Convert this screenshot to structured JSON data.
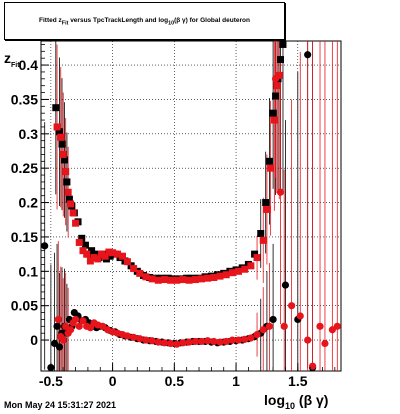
{
  "title": {
    "prefix": "Fitted  z",
    "sub1": "Fit",
    "middle": "  versus TpcTrackLength and log",
    "sub2": "10",
    "suffix": "(β γ) for Global deuteron"
  },
  "footer": "Mon May 24 15:31:27 2021",
  "y_axis_label": {
    "main": "z",
    "sub": "Fit"
  },
  "x_axis_label": {
    "main": "log",
    "sub": "10",
    "rest": "(β γ)"
  },
  "chart_data": {
    "type": "scatter",
    "xlim": [
      -0.58,
      1.85
    ],
    "ylim": [
      -0.045,
      0.435
    ],
    "grid": true,
    "x_ticks": [
      "-0.5",
      "0",
      "0.5",
      "1",
      "1.5"
    ],
    "x_tick_values": [
      -0.5,
      0,
      0.5,
      1,
      1.5
    ],
    "y_ticks": [
      "0",
      "0.05",
      "0.1",
      "0.15",
      "0.2",
      "0.25",
      "0.3",
      "0.35",
      "0.4"
    ],
    "y_tick_values": [
      0,
      0.05,
      0.1,
      0.15,
      0.2,
      0.25,
      0.3,
      0.35,
      0.4
    ],
    "series": [
      {
        "color": "#000000",
        "marker": "square",
        "points": [
          [
            -0.46,
            0.338
          ],
          [
            -0.43,
            0.303
          ],
          [
            -0.41,
            0.285
          ],
          [
            -0.39,
            0.262
          ],
          [
            -0.37,
            0.23
          ],
          [
            -0.35,
            0.205
          ],
          [
            -0.33,
            0.195
          ],
          [
            -0.31,
            0.185
          ],
          [
            -0.28,
            0.172
          ],
          [
            -0.25,
            0.148
          ],
          [
            -0.22,
            0.138
          ],
          [
            -0.2,
            0.125
          ],
          [
            -0.17,
            0.13
          ],
          [
            -0.14,
            0.125
          ],
          [
            -0.11,
            0.12
          ],
          [
            -0.08,
            0.125
          ],
          [
            -0.05,
            0.118
          ],
          [
            -0.02,
            0.122
          ],
          [
            0.02,
            0.125
          ],
          [
            0.06,
            0.12
          ],
          [
            0.1,
            0.115
          ],
          [
            0.15,
            0.108
          ],
          [
            0.2,
            0.1
          ],
          [
            0.25,
            0.094
          ],
          [
            0.3,
            0.091
          ],
          [
            0.35,
            0.09
          ],
          [
            0.4,
            0.09
          ],
          [
            0.45,
            0.09
          ],
          [
            0.5,
            0.089
          ],
          [
            0.55,
            0.089
          ],
          [
            0.6,
            0.09
          ],
          [
            0.65,
            0.09
          ],
          [
            0.7,
            0.09
          ],
          [
            0.75,
            0.092
          ],
          [
            0.8,
            0.093
          ],
          [
            0.85,
            0.095
          ],
          [
            0.9,
            0.097
          ],
          [
            0.95,
            0.1
          ],
          [
            1.0,
            0.102
          ],
          [
            1.05,
            0.105
          ],
          [
            1.1,
            0.11
          ],
          [
            1.15,
            0.125
          ],
          [
            1.2,
            0.155
          ],
          [
            1.24,
            0.2
          ],
          [
            1.27,
            0.26
          ],
          [
            1.3,
            0.33
          ],
          [
            1.32,
            0.355
          ],
          [
            1.34,
            0.38
          ],
          [
            1.36,
            0.408
          ],
          [
            1.38,
            0.43
          ]
        ]
      },
      {
        "color": "#e8141c",
        "marker": "square",
        "points": [
          [
            -0.45,
            0.31
          ],
          [
            -0.42,
            0.295
          ],
          [
            -0.4,
            0.27
          ],
          [
            -0.38,
            0.245
          ],
          [
            -0.36,
            0.215
          ],
          [
            -0.34,
            0.198
          ],
          [
            -0.32,
            0.185
          ],
          [
            -0.3,
            0.17
          ],
          [
            -0.27,
            0.142
          ],
          [
            -0.24,
            0.13
          ],
          [
            -0.21,
            0.125
          ],
          [
            -0.18,
            0.115
          ],
          [
            -0.15,
            0.12
          ],
          [
            -0.12,
            0.118
          ],
          [
            -0.09,
            0.125
          ],
          [
            -0.06,
            0.122
          ],
          [
            -0.03,
            0.128
          ],
          [
            0.0,
            0.127
          ],
          [
            0.04,
            0.125
          ],
          [
            0.08,
            0.122
          ],
          [
            0.12,
            0.114
          ],
          [
            0.17,
            0.104
          ],
          [
            0.22,
            0.097
          ],
          [
            0.27,
            0.092
          ],
          [
            0.32,
            0.089
          ],
          [
            0.37,
            0.087
          ],
          [
            0.42,
            0.088
          ],
          [
            0.47,
            0.087
          ],
          [
            0.52,
            0.087
          ],
          [
            0.57,
            0.088
          ],
          [
            0.62,
            0.087
          ],
          [
            0.67,
            0.088
          ],
          [
            0.72,
            0.089
          ],
          [
            0.77,
            0.09
          ],
          [
            0.82,
            0.091
          ],
          [
            0.87,
            0.093
          ],
          [
            0.92,
            0.095
          ],
          [
            0.97,
            0.098
          ],
          [
            1.02,
            0.1
          ],
          [
            1.07,
            0.103
          ],
          [
            1.12,
            0.108
          ],
          [
            1.17,
            0.12
          ],
          [
            1.22,
            0.145
          ],
          [
            1.25,
            0.19
          ],
          [
            1.28,
            0.25
          ],
          [
            1.31,
            0.32
          ],
          [
            1.33,
            0.37
          ],
          [
            1.35,
            0.385
          ]
        ]
      },
      {
        "color": "#000000",
        "marker": "circle",
        "points": [
          [
            -0.55,
            0.137
          ],
          [
            -0.5,
            -0.04
          ],
          [
            -0.47,
            -0.005
          ],
          [
            -0.45,
            0.02
          ],
          [
            -0.43,
            -0.01
          ],
          [
            -0.41,
            0.01
          ],
          [
            -0.39,
            0.02
          ],
          [
            -0.37,
            0.01
          ],
          [
            -0.35,
            0.03
          ],
          [
            -0.33,
            0.02
          ],
          [
            -0.31,
            0.04
          ],
          [
            -0.28,
            0.035
          ],
          [
            -0.25,
            0.028
          ],
          [
            -0.22,
            0.03
          ],
          [
            -0.19,
            0.025
          ],
          [
            -0.16,
            0.02
          ],
          [
            -0.13,
            0.018
          ],
          [
            -0.1,
            0.02
          ],
          [
            -0.06,
            0.018
          ],
          [
            -0.02,
            0.014
          ],
          [
            0.02,
            0.012
          ],
          [
            0.06,
            0.008
          ],
          [
            0.1,
            0.006
          ],
          [
            0.15,
            0.004
          ],
          [
            0.2,
            0.002
          ],
          [
            0.25,
            0.0
          ],
          [
            0.3,
            -0.001
          ],
          [
            0.35,
            -0.002
          ],
          [
            0.4,
            -0.003
          ],
          [
            0.45,
            -0.004
          ],
          [
            0.5,
            -0.005
          ],
          [
            0.55,
            -0.004
          ],
          [
            0.6,
            -0.003
          ],
          [
            0.65,
            -0.002
          ],
          [
            0.7,
            -0.002
          ],
          [
            0.75,
            -0.002
          ],
          [
            0.8,
            -0.003
          ],
          [
            0.85,
            -0.004
          ],
          [
            0.9,
            -0.003
          ],
          [
            0.95,
            -0.002
          ],
          [
            1.0,
            -0.001
          ],
          [
            1.05,
            0.0
          ],
          [
            1.1,
            0.002
          ],
          [
            1.15,
            0.005
          ],
          [
            1.2,
            0.01
          ],
          [
            1.25,
            0.02
          ],
          [
            1.3,
            0.03
          ],
          [
            1.4,
            0.08
          ],
          [
            1.5,
            0.03
          ],
          [
            1.58,
            0.415
          ],
          [
            1.62,
            -0.04
          ]
        ]
      },
      {
        "color": "#e8141c",
        "marker": "circle",
        "points": [
          [
            -0.44,
            0.03
          ],
          [
            -0.42,
            0.005
          ],
          [
            -0.4,
            0.0
          ],
          [
            -0.38,
            0.02
          ],
          [
            -0.36,
            0.01
          ],
          [
            -0.34,
            0.015
          ],
          [
            -0.32,
            0.025
          ],
          [
            -0.3,
            0.03
          ],
          [
            -0.27,
            0.02
          ],
          [
            -0.24,
            0.028
          ],
          [
            -0.21,
            0.02
          ],
          [
            -0.18,
            0.018
          ],
          [
            -0.15,
            0.025
          ],
          [
            -0.12,
            0.022
          ],
          [
            -0.08,
            0.02
          ],
          [
            -0.04,
            0.015
          ],
          [
            0.0,
            0.012
          ],
          [
            0.04,
            0.01
          ],
          [
            0.08,
            0.008
          ],
          [
            0.12,
            0.006
          ],
          [
            0.17,
            0.004
          ],
          [
            0.22,
            0.002
          ],
          [
            0.27,
            0.0
          ],
          [
            0.32,
            -0.001
          ],
          [
            0.37,
            -0.003
          ],
          [
            0.42,
            -0.004
          ],
          [
            0.47,
            -0.005
          ],
          [
            0.52,
            -0.006
          ],
          [
            0.57,
            -0.004
          ],
          [
            0.62,
            -0.003
          ],
          [
            0.67,
            -0.002
          ],
          [
            0.72,
            -0.002
          ],
          [
            0.77,
            -0.001
          ],
          [
            0.82,
            -0.002
          ],
          [
            0.87,
            -0.003
          ],
          [
            0.92,
            -0.002
          ],
          [
            0.97,
            0.0
          ],
          [
            1.02,
            0.0
          ],
          [
            1.07,
            0.001
          ],
          [
            1.12,
            0.003
          ],
          [
            1.17,
            0.008
          ],
          [
            1.22,
            0.015
          ],
          [
            1.27,
            0.02
          ],
          [
            1.32,
            0.38
          ],
          [
            1.36,
            0.215
          ],
          [
            1.39,
            0.02
          ],
          [
            1.45,
            0.05
          ],
          [
            1.52,
            0.035
          ],
          [
            1.58,
            0.0
          ],
          [
            1.62,
            -0.038
          ],
          [
            1.68,
            0.02
          ],
          [
            1.72,
            -0.005
          ],
          [
            1.78,
            0.015
          ],
          [
            1.82,
            0.02
          ]
        ]
      }
    ]
  }
}
